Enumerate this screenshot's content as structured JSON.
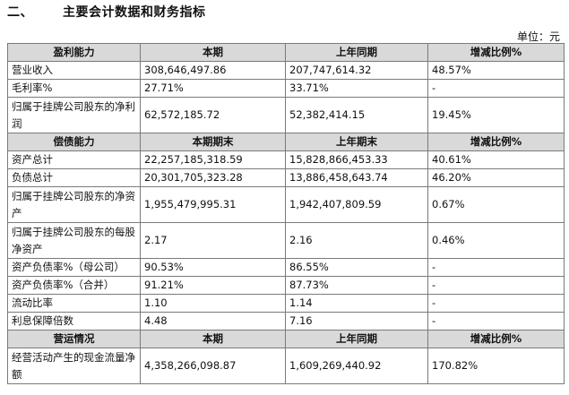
{
  "section": {
    "number": "二、",
    "title": "主要会计数据和财务指标"
  },
  "unit_label": "单位：元",
  "profitability": {
    "headers": [
      "盈利能力",
      "本期",
      "上年同期",
      "增减比例%"
    ],
    "rows": [
      [
        "营业收入",
        "308,646,497.86",
        "207,747,614.32",
        "48.57%"
      ],
      [
        "毛利率%",
        "27.71%",
        "33.71%",
        "-"
      ],
      [
        "归属于挂牌公司股东的净利润",
        "62,572,185.72",
        "52,382,414.15",
        "19.45%"
      ]
    ]
  },
  "solvency": {
    "headers": [
      "偿债能力",
      "本期期末",
      "上年期末",
      "增减比例%"
    ],
    "rows": [
      [
        "资产总计",
        "22,257,185,318.59",
        "15,828,866,453.33",
        "40.61%"
      ],
      [
        "负债总计",
        "20,301,705,323.28",
        "13,886,458,643.74",
        "46.20%"
      ],
      [
        "归属于挂牌公司股东的净资产",
        "1,955,479,995.31",
        "1,942,407,809.59",
        "0.67%"
      ],
      [
        "归属于挂牌公司股东的每股净资产",
        "2.17",
        "2.16",
        "0.46%"
      ],
      [
        "资产负债率%（母公司）",
        "90.53%",
        "86.55%",
        "-"
      ],
      [
        "资产负债率%（合并）",
        "91.21%",
        "87.73%",
        "-"
      ],
      [
        "流动比率",
        "1.10",
        "1.14",
        "-"
      ],
      [
        "利息保障倍数",
        "4.48",
        "7.16",
        "-"
      ]
    ]
  },
  "operations": {
    "headers": [
      "营运情况",
      "本期",
      "上年同期",
      "增减比例%"
    ],
    "rows": [
      [
        "经营活动产生的现金流量净额",
        "4,358,266,098.87",
        "1,609,269,440.92",
        "170.82%"
      ]
    ]
  }
}
